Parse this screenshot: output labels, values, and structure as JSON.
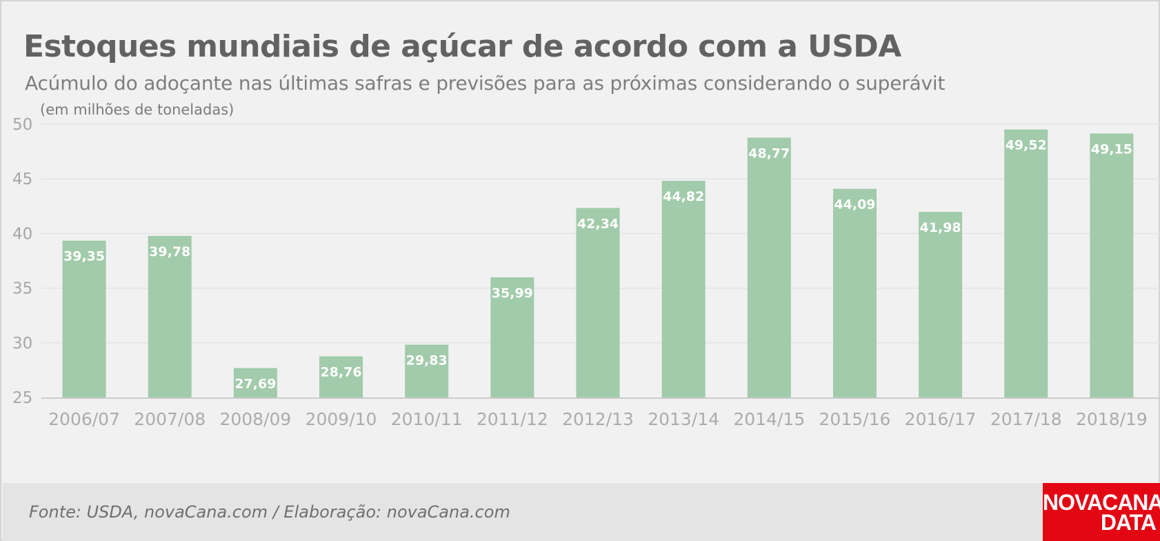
{
  "header": {
    "title": "Estoques mundiais de açúcar de acordo com a USDA",
    "subtitle": "Acúmulo do adoçante nas últimas safras e previsões para as próximas considerando o superávit"
  },
  "footer": {
    "source": "Fonte: USDA, novaCana.com / Elaboração: novaCana.com",
    "logo_line1": "NOVACANA",
    "logo_line2": "DATA"
  },
  "colors": {
    "bar": "#a1cbaa",
    "grid": "#e3e3e3",
    "axis": "#cccccc",
    "logo_bg": "#e30613"
  },
  "chart_data": {
    "type": "bar",
    "title": "Estoques mundiais de açúcar de acordo com a USDA",
    "subtitle": "Acúmulo do adoçante nas últimas safras e previsões para as próximas considerando o superávit",
    "unit_label": "(em milhões de toneladas)",
    "categories": [
      "2006/07",
      "2007/08",
      "2008/09",
      "2009/10",
      "2010/11",
      "2011/12",
      "2012/13",
      "2013/14",
      "2014/15",
      "2015/16",
      "2016/17",
      "2017/18",
      "2018/19"
    ],
    "values": [
      39.35,
      39.78,
      27.69,
      28.76,
      29.83,
      35.99,
      42.34,
      44.82,
      48.77,
      44.09,
      41.98,
      49.52,
      49.15
    ],
    "value_labels": [
      "39,35",
      "39,78",
      "27,69",
      "28,76",
      "29,83",
      "35,99",
      "42,34",
      "44,82",
      "48,77",
      "44,09",
      "41,98",
      "49,52",
      "49,15"
    ],
    "ylim": [
      25,
      50
    ],
    "yticks": [
      25,
      30,
      35,
      40,
      45,
      50
    ],
    "grid": true,
    "legend": "none"
  }
}
